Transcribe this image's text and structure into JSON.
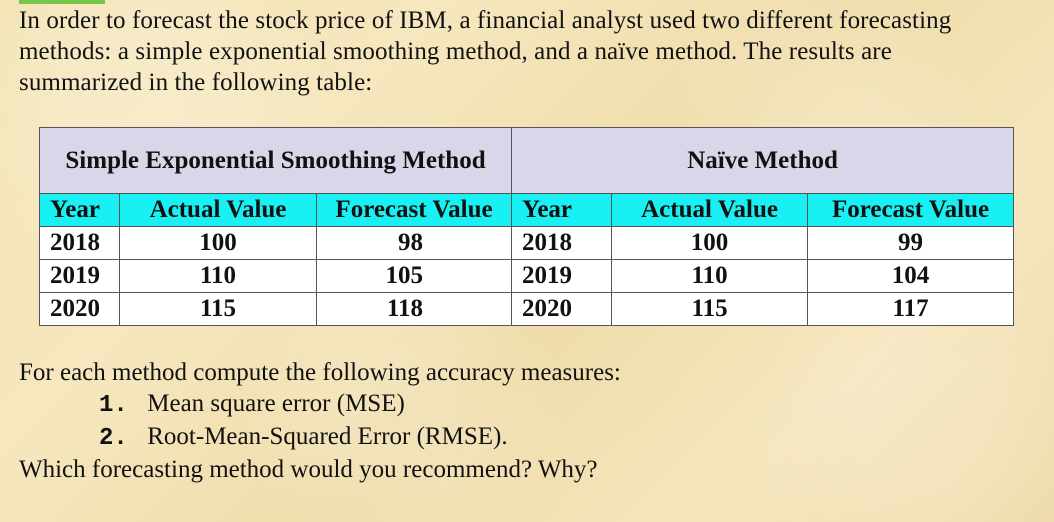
{
  "intro_text": "In order to forecast the stock price of IBM, a financial analyst used two different forecasting methods: a simple exponential smoothing method, and a naïve method. The results are summarized in the following table:",
  "table": {
    "left_group_title": "Simple Exponential Smoothing Method",
    "right_group_title": "Naïve Method",
    "headers": {
      "year": "Year",
      "actual": "Actual Value",
      "forecast": "Forecast Value"
    },
    "left_rows": [
      {
        "year": "2018",
        "actual": "100",
        "forecast": "98"
      },
      {
        "year": "2019",
        "actual": "110",
        "forecast": "105"
      },
      {
        "year": "2020",
        "actual": "115",
        "forecast": "118"
      }
    ],
    "right_rows": [
      {
        "year": "2018",
        "actual": "100",
        "forecast": "99"
      },
      {
        "year": "2019",
        "actual": "110",
        "forecast": "104"
      },
      {
        "year": "2020",
        "actual": "115",
        "forecast": "117"
      }
    ]
  },
  "questions": {
    "prompt": "For each method compute the following accuracy measures:",
    "items": [
      {
        "number": "1.",
        "text": "Mean square error (MSE)"
      },
      {
        "number": "2.",
        "text": "Root-Mean-Squared Error (RMSE)."
      }
    ],
    "recommendation": "Which forecasting method would you recommend? Why?"
  },
  "colors": {
    "background": "#f3e2b1",
    "header_group": "#d8d7ea",
    "header_columns": "#19f0f4",
    "accent_line": "#77c64a"
  }
}
